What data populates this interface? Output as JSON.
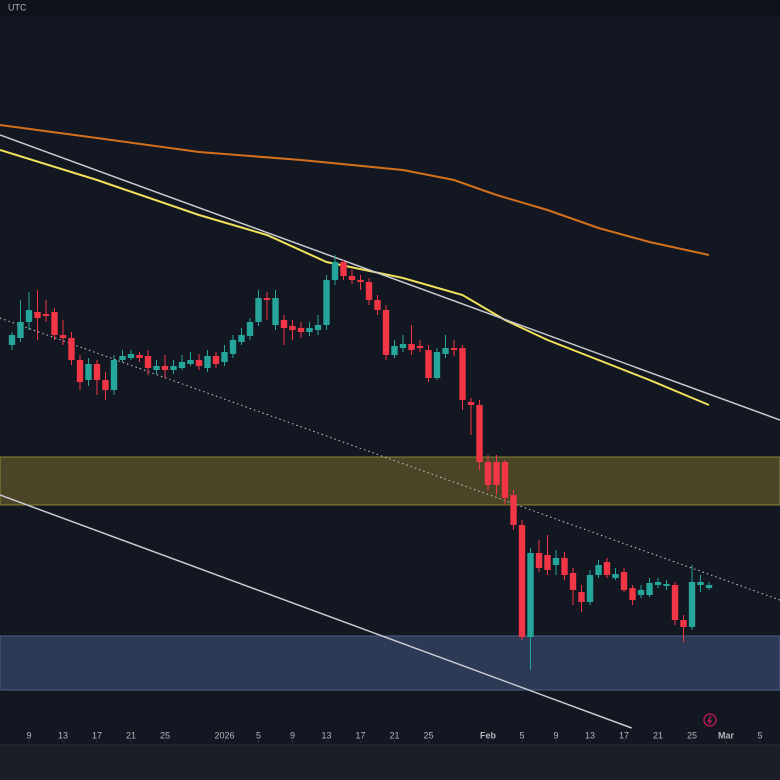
{
  "chart_data": {
    "type": "candlestick",
    "header": "UTC",
    "x": [
      0,
      1,
      2,
      3,
      4,
      5,
      6,
      7,
      8,
      9,
      10,
      11,
      12,
      13,
      14,
      15,
      16,
      17,
      18,
      19,
      20,
      21,
      22,
      23,
      24,
      25,
      26,
      27,
      28,
      29,
      30,
      31,
      32,
      33,
      34,
      35,
      36,
      37,
      38,
      39,
      40,
      41,
      42,
      43,
      44,
      45,
      46,
      47,
      48,
      49,
      50,
      51,
      52,
      53,
      54,
      55,
      56,
      57,
      58,
      59,
      60,
      61,
      62,
      63,
      64,
      65,
      66,
      67,
      68,
      69,
      70,
      71,
      72,
      73,
      74,
      75,
      76,
      77,
      78,
      79,
      80,
      81,
      82
    ],
    "open": [
      455,
      462,
      478,
      488,
      486,
      488,
      465,
      462,
      440,
      420,
      436,
      420,
      410,
      440,
      442,
      445,
      444,
      430,
      434,
      430,
      432,
      436,
      440,
      432,
      444,
      438,
      446,
      458,
      464,
      478,
      502,
      475,
      480,
      474,
      472,
      468,
      470,
      475,
      520,
      538,
      524,
      520,
      518,
      500,
      490,
      445,
      452,
      456,
      454,
      450,
      422,
      446,
      452,
      452,
      398,
      395,
      338,
      338,
      338,
      305,
      275,
      163,
      247,
      245,
      235,
      242,
      227,
      208,
      198,
      225,
      238,
      222,
      228,
      212,
      205,
      205,
      215,
      214,
      215,
      180,
      173,
      215,
      212
    ],
    "high": [
      468,
      500,
      508,
      510,
      500,
      492,
      480,
      468,
      445,
      442,
      440,
      428,
      445,
      450,
      450,
      448,
      450,
      440,
      445,
      440,
      445,
      448,
      446,
      450,
      448,
      455,
      465,
      472,
      482,
      510,
      508,
      510,
      485,
      480,
      478,
      478,
      485,
      525,
      545,
      540,
      530,
      525,
      522,
      505,
      495,
      460,
      465,
      475,
      460,
      455,
      452,
      465,
      460,
      455,
      402,
      400,
      345,
      345,
      340,
      310,
      280,
      252,
      260,
      265,
      250,
      248,
      232,
      215,
      230,
      240,
      242,
      232,
      232,
      215,
      215,
      222,
      222,
      220,
      218,
      185,
      235,
      225,
      218
    ],
    "low": [
      450,
      458,
      470,
      460,
      478,
      460,
      455,
      435,
      410,
      414,
      405,
      400,
      405,
      438,
      440,
      438,
      425,
      426,
      422,
      426,
      430,
      434,
      430,
      428,
      432,
      434,
      442,
      455,
      460,
      474,
      480,
      470,
      455,
      460,
      462,
      464,
      465,
      470,
      515,
      520,
      516,
      510,
      495,
      485,
      440,
      442,
      448,
      445,
      448,
      418,
      420,
      442,
      444,
      390,
      365,
      330,
      310,
      305,
      295,
      270,
      160,
      130,
      228,
      225,
      225,
      220,
      195,
      188,
      195,
      222,
      222,
      220,
      208,
      195,
      202,
      203,
      212,
      210,
      175,
      158,
      170,
      208,
      210
    ],
    "close": [
      465,
      478,
      490,
      482,
      484,
      465,
      462,
      440,
      418,
      436,
      420,
      410,
      440,
      444,
      446,
      442,
      432,
      434,
      430,
      434,
      438,
      440,
      434,
      444,
      436,
      448,
      460,
      465,
      478,
      502,
      500,
      502,
      472,
      470,
      468,
      472,
      475,
      520,
      538,
      524,
      520,
      518,
      500,
      490,
      445,
      454,
      456,
      450,
      452,
      422,
      448,
      452,
      450,
      400,
      395,
      338,
      315,
      315,
      302,
      275,
      163,
      247,
      232,
      230,
      242,
      225,
      210,
      198,
      225,
      235,
      225,
      226,
      210,
      200,
      210,
      217,
      218,
      216,
      180,
      173,
      218,
      218,
      215
    ],
    "up_color": "#26a69a",
    "down_color": "#f23645",
    "xlim": [
      -1.41,
      90.35
    ],
    "ylim": [
      60,
      784
    ],
    "xticks": [
      {
        "value": 2,
        "label": "9"
      },
      {
        "value": 6,
        "label": "13"
      },
      {
        "value": 10,
        "label": "17"
      },
      {
        "value": 14,
        "label": "21"
      },
      {
        "value": 18,
        "label": "25"
      },
      {
        "value": 25,
        "label": "2026"
      },
      {
        "value": 29,
        "label": "5"
      },
      {
        "value": 33,
        "label": "9"
      },
      {
        "value": 37,
        "label": "13"
      },
      {
        "value": 41,
        "label": "17"
      },
      {
        "value": 45,
        "label": "21"
      },
      {
        "value": 49,
        "label": "25"
      },
      {
        "value": 56,
        "label": "Feb"
      },
      {
        "value": 60,
        "label": "5"
      },
      {
        "value": 64,
        "label": "9"
      },
      {
        "value": 68,
        "label": "13"
      },
      {
        "value": 72,
        "label": "17"
      },
      {
        "value": 76,
        "label": "21"
      },
      {
        "value": 80,
        "label": "25"
      },
      {
        "value": 84,
        "label": "Mar"
      },
      {
        "value": 88,
        "label": "5"
      }
    ],
    "zones": [
      {
        "from": 295,
        "to": 343,
        "color": "#4a4526",
        "edge": "#8c8630"
      },
      {
        "from": 110,
        "to": 164,
        "color": "#2c3a55",
        "edge": "#4d5f86"
      }
    ],
    "lines": [
      {
        "color": "#d4701c",
        "width": 2,
        "x": [
          -1.41,
          10,
          22,
          34,
          46,
          52,
          57,
          63,
          69,
          75,
          82
        ],
        "values": [
          675,
          662,
          648,
          640,
          630,
          620,
          605,
          590,
          572,
          558,
          545
        ]
      },
      {
        "color": "#f0e05a",
        "width": 2,
        "x": [
          -1.41,
          10,
          22,
          30,
          37,
          46,
          53,
          58,
          63,
          69,
          75,
          82
        ],
        "values": [
          650,
          620,
          585,
          565,
          538,
          522,
          505,
          480,
          460,
          440,
          420,
          395
        ]
      },
      {
        "color": "#c8cad0",
        "width": 1.5,
        "x": [
          -1.41,
          90.35
        ],
        "values": [
          665,
          380
        ]
      },
      {
        "color": "#c8cad0",
        "width": 1,
        "dash": "1.5 3",
        "x": [
          -1.41,
          90.35
        ],
        "values": [
          482,
          200
        ]
      },
      {
        "color": "#c8cad0",
        "width": 1.5,
        "x": [
          -1.41,
          72.9
        ],
        "values": [
          305,
          72
        ]
      }
    ]
  }
}
